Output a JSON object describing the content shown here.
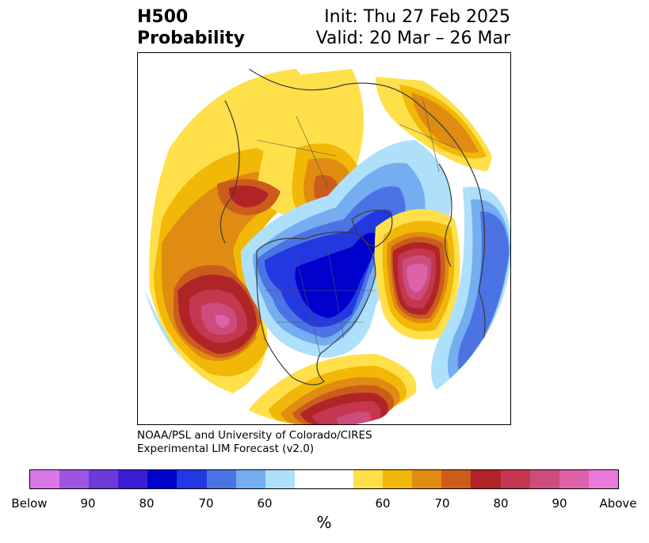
{
  "header": {
    "title_line1": "H500",
    "title_line2": "Probability",
    "init": "Init: Thu 27 Feb 2025",
    "valid": "Valid: 20 Mar – 26 Mar"
  },
  "credit": {
    "line1": "NOAA/PSL and University of Colorado/CIRES",
    "line2": "Experimental LIM Forecast (v2.0)"
  },
  "colorbar": {
    "colors": [
      "#d977e8",
      "#9b55e0",
      "#6b3bd9",
      "#3c1ed6",
      "#0000cc",
      "#2338e0",
      "#4b73e4",
      "#74adf0",
      "#aee0fb",
      "#ffffff",
      "#ffffff",
      "#ffe04a",
      "#f2b807",
      "#e08b12",
      "#cb5c1c",
      "#b02427",
      "#c53650",
      "#cc4d7d",
      "#dd62a9",
      "#e87adb"
    ],
    "tick_labels": [
      "Below",
      "90",
      "80",
      "70",
      "60",
      "60",
      "70",
      "80",
      "90",
      "Above"
    ],
    "unit": "%"
  },
  "map": {
    "projection": "north polar stereographic",
    "colors": {
      "y60": "#ffe04a",
      "y65": "#f2b807",
      "o70": "#e08b12",
      "o75": "#cb5c1c",
      "r80": "#b02427",
      "r85": "#c53650",
      "p90": "#cc4d7d",
      "p95": "#dd62a9",
      "b60": "#aee0fb",
      "b65": "#74adf0",
      "b70": "#4b73e4",
      "b75": "#2338e0",
      "b80": "#0000cc"
    }
  }
}
